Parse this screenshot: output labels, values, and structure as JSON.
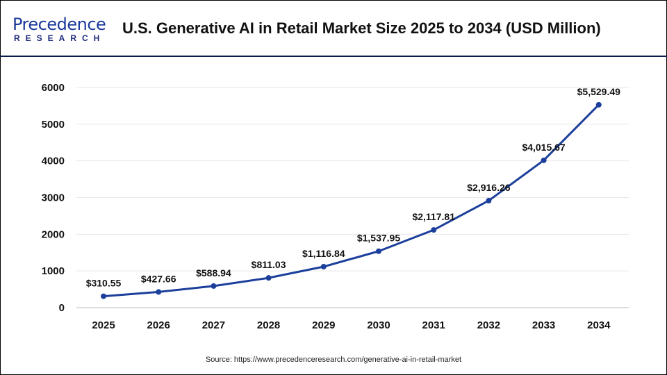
{
  "header": {
    "logo_text_top": "Precedence",
    "logo_text_bottom": "RESEARCH",
    "title": "U.S. Generative AI in Retail Market Size 2025 to 2034 (USD Million)"
  },
  "source": "Source: https://www.precedenceresearch.com/generative-ai-in-retail-market",
  "colors": {
    "line": "#1c3f9c",
    "grid": "#e6e6e6",
    "header_rule": "#0d1a4a"
  },
  "chart_data": {
    "type": "line",
    "title": "U.S. Generative AI in Retail Market Size 2025 to 2034 (USD Million)",
    "categories": [
      "2025",
      "2026",
      "2027",
      "2028",
      "2029",
      "2030",
      "2031",
      "2032",
      "2033",
      "2034"
    ],
    "values": [
      310.55,
      427.66,
      588.94,
      811.03,
      1116.84,
      1537.95,
      2117.81,
      2916.26,
      4015.67,
      5529.49
    ],
    "data_labels": [
      "$310.55",
      "$427.66",
      "$588.94",
      "$811.03",
      "$1,116.84",
      "$1,537.95",
      "$2,117.81",
      "$2,916.26",
      "$4,015.67",
      "$5,529.49"
    ],
    "yticks": [
      0,
      1000,
      2000,
      3000,
      4000,
      5000,
      6000
    ],
    "ylim": [
      0,
      6000
    ],
    "grid": true,
    "legend": "none",
    "markers": true
  }
}
